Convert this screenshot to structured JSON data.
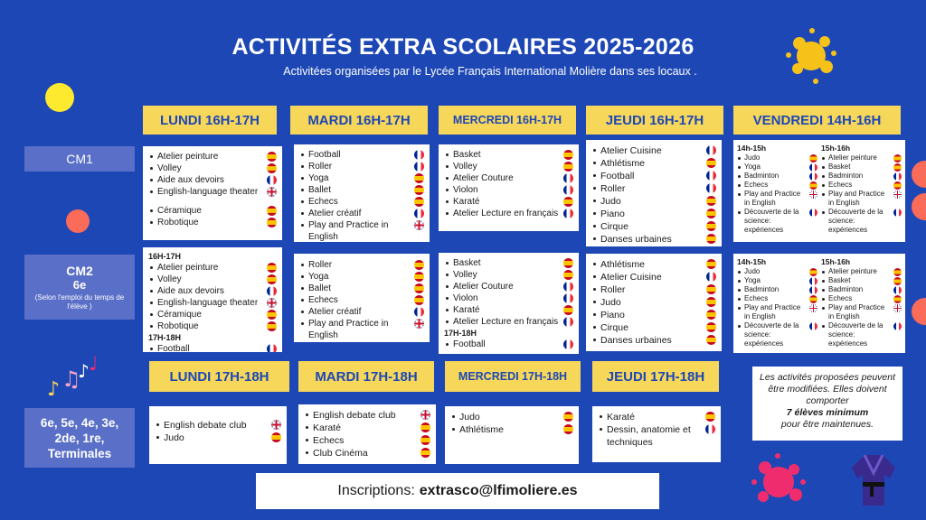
{
  "header": {
    "title": "ACTIVITÉS EXTRA SCOLAIRES  2025-2026",
    "subtitle": "Activitées organisées par le Lycée Français International Molière dans ses locaux ."
  },
  "levels": {
    "cm1": "CM1",
    "cm2_title": "CM2",
    "cm2_sub": "6e",
    "cm2_note": "(Selon l'emploi du temps de l'élève )",
    "secondary": "6e, 5e, 4e, 3e, 2de, 1re, Terminales"
  },
  "days_top": {
    "lundi": "LUNDI 16H-17H",
    "mardi": "MARDI 16H-17H",
    "mercredi": "MERCREDI 16H-17H",
    "jeudi": "JEUDI 16H-17H",
    "vendredi": "VENDREDI 14H-16H"
  },
  "days_bottom": {
    "lundi": "LUNDI 17H-18H",
    "mardi": "MARDI 17H-18H",
    "mercredi": "MERCREDI 17H-18H",
    "jeudi": "JEUDI 17H-18H"
  },
  "cm1": {
    "lundi": [
      {
        "label": "Atelier peinture",
        "flag": "es"
      },
      {
        "label": "Volley",
        "flag": "es"
      },
      {
        "label": "Aide aux devoirs",
        "flag": "fr"
      },
      {
        "label": "English-language theater",
        "flag": "uk"
      },
      {
        "label": "Céramique",
        "flag": "es"
      },
      {
        "label": "Robotique",
        "flag": "es"
      }
    ],
    "mardi": [
      {
        "label": "Football",
        "flag": "fr"
      },
      {
        "label": "Roller",
        "flag": "fr"
      },
      {
        "label": "Yoga",
        "flag": "es"
      },
      {
        "label": "Ballet",
        "flag": "es"
      },
      {
        "label": "Echecs",
        "flag": "es"
      },
      {
        "label": "Atelier créatif",
        "flag": "fr"
      },
      {
        "label": "Play and Practice in English",
        "flag": "uk"
      }
    ],
    "mercredi": [
      {
        "label": "Basket",
        "flag": "es"
      },
      {
        "label": "Volley",
        "flag": "es"
      },
      {
        "label": "Atelier Couture",
        "flag": "fr"
      },
      {
        "label": "Violon",
        "flag": "fr"
      },
      {
        "label": "Karaté",
        "flag": "es"
      },
      {
        "label": "Atelier Lecture en français",
        "flag": "fr"
      }
    ],
    "jeudi": [
      {
        "label": "Atelier Cuisine",
        "flag": "fr"
      },
      {
        "label": "Athlétisme",
        "flag": "es"
      },
      {
        "label": "Football",
        "flag": "fr"
      },
      {
        "label": "Roller",
        "flag": "fr"
      },
      {
        "label": "Judo",
        "flag": "es"
      },
      {
        "label": "Piano",
        "flag": "es"
      },
      {
        "label": "Cirque",
        "flag": "es"
      },
      {
        "label": "Danses urbaines",
        "flag": "es"
      }
    ],
    "vendredi": {
      "col1_title": "14h-15h",
      "col1": [
        {
          "label": "Judo",
          "flag": "es"
        },
        {
          "label": "Yoga",
          "flag": "fr"
        },
        {
          "label": "Badminton",
          "flag": "fr"
        },
        {
          "label": "Echecs",
          "flag": "es"
        },
        {
          "label": "Play and Practice in English",
          "flag": "uk"
        },
        {
          "label": "Découverte de la science: expériences",
          "flag": "fr"
        }
      ],
      "col2_title": "15h-16h",
      "col2": [
        {
          "label": "Atelier peinture",
          "flag": "es"
        },
        {
          "label": "Basket",
          "flag": "es"
        },
        {
          "label": "Badminton",
          "flag": "fr"
        },
        {
          "label": "Echecs",
          "flag": "es"
        },
        {
          "label": "Play and Practice in English",
          "flag": "uk"
        },
        {
          "label": "Découverte de la science: expériences",
          "flag": "fr"
        }
      ]
    }
  },
  "cm2": {
    "lundi_sub1": "16H-17H",
    "lundi": [
      {
        "label": "Atelier peinture",
        "flag": "es"
      },
      {
        "label": "Volley",
        "flag": "es"
      },
      {
        "label": "Aide aux devoirs",
        "flag": "fr"
      },
      {
        "label": "English-language theater",
        "flag": "uk"
      },
      {
        "label": "Céramique",
        "flag": "es"
      },
      {
        "label": "Robotique",
        "flag": "es"
      }
    ],
    "lundi_sub2": "17H-18H",
    "lundi2": [
      {
        "label": "Football",
        "flag": "fr"
      }
    ],
    "mardi": [
      {
        "label": "Roller",
        "flag": "es"
      },
      {
        "label": "Yoga",
        "flag": "es"
      },
      {
        "label": "Ballet",
        "flag": "es"
      },
      {
        "label": "Echecs",
        "flag": "es"
      },
      {
        "label": "Atelier créatif",
        "flag": "fr"
      },
      {
        "label": "Play and Practice in English",
        "flag": "uk"
      }
    ],
    "mercredi": [
      {
        "label": "Basket",
        "flag": "es"
      },
      {
        "label": "Volley",
        "flag": "es"
      },
      {
        "label": "Atelier Couture",
        "flag": "fr"
      },
      {
        "label": "Violon",
        "flag": "fr"
      },
      {
        "label": "Karaté",
        "flag": "es"
      },
      {
        "label": "Atelier Lecture en français",
        "flag": "fr"
      }
    ],
    "mercredi_sub": "17H-18H",
    "mercredi2": [
      {
        "label": "Football",
        "flag": "fr"
      }
    ],
    "jeudi": [
      {
        "label": "Athlétisme",
        "flag": "es"
      },
      {
        "label": "Atelier Cuisine",
        "flag": "fr"
      },
      {
        "label": "Roller",
        "flag": "es"
      },
      {
        "label": "Judo",
        "flag": "es"
      },
      {
        "label": "Piano",
        "flag": "es"
      },
      {
        "label": "Cirque",
        "flag": "es"
      },
      {
        "label": "Danses urbaines",
        "flag": "es"
      }
    ],
    "vendredi": {
      "col1_title": "14h-15h",
      "col1": [
        {
          "label": "Judo",
          "flag": "es"
        },
        {
          "label": "Yoga",
          "flag": "fr"
        },
        {
          "label": "Badminton",
          "flag": "fr"
        },
        {
          "label": "Echecs",
          "flag": "es"
        },
        {
          "label": "Play and Practice in English",
          "flag": "uk"
        },
        {
          "label": "Découverte de la science: expériences",
          "flag": "fr"
        }
      ],
      "col2_title": "15h-16h",
      "col2": [
        {
          "label": "Atelier peinture",
          "flag": "es"
        },
        {
          "label": "Basket",
          "flag": "es"
        },
        {
          "label": "Badminton",
          "flag": "fr"
        },
        {
          "label": "Echecs",
          "flag": "es"
        },
        {
          "label": "Play and Practice in English",
          "flag": "uk"
        },
        {
          "label": "Découverte de la science: expériences",
          "flag": "fr"
        }
      ]
    }
  },
  "secondary": {
    "lundi": [
      {
        "label": "English debate club",
        "flag": "uk"
      },
      {
        "label": "Judo",
        "flag": "es"
      }
    ],
    "mardi": [
      {
        "label": "English debate club",
        "flag": "uk"
      },
      {
        "label": "Karaté",
        "flag": "es"
      },
      {
        "label": "Echecs",
        "flag": "es"
      },
      {
        "label": "Club Cinéma",
        "flag": "es"
      }
    ],
    "mercredi": [
      {
        "label": "Judo",
        "flag": "es"
      },
      {
        "label": "Athlétisme",
        "flag": "es"
      }
    ],
    "jeudi": [
      {
        "label": "Karaté",
        "flag": "es"
      },
      {
        "label": "Dessin, anatomie et techniques",
        "flag": "fr"
      }
    ]
  },
  "note": {
    "line1": "Les activités proposées peuvent être modifiées. Elles doivent comporter",
    "bold": "7 élèves minimum",
    "line2": "pour être maintenues."
  },
  "footer": {
    "label": "Inscriptions:",
    "email": "extrasco@lfimoliere.es"
  },
  "colors": {
    "background": "#1d47b5",
    "header_yellow": "#f7d75a",
    "level_box": "#5a6fc7",
    "dot_yellow": "#fde92e",
    "dot_salmon": "#fb6b5a"
  },
  "icons": [
    "paint-splash-icon",
    "music-notes-icon",
    "judo-gi-icon",
    "spain-flag-icon",
    "france-flag-icon",
    "uk-flag-icon"
  ]
}
